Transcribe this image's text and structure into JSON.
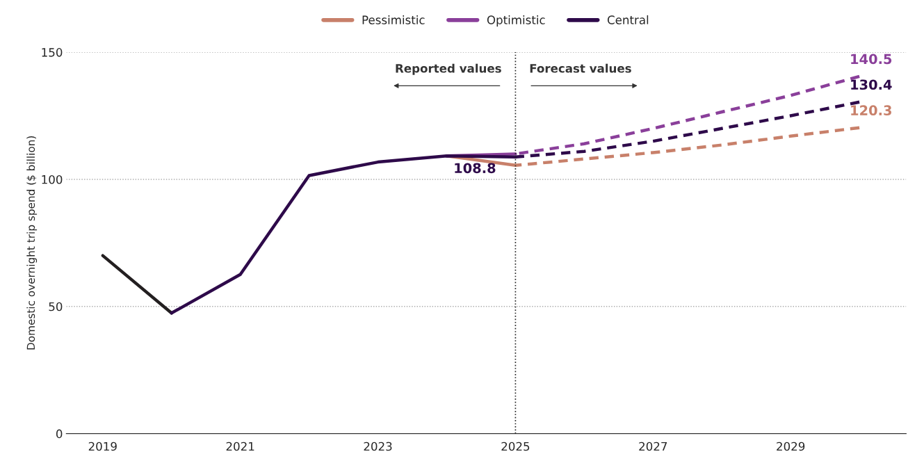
{
  "chart_data": {
    "type": "line",
    "ylabel": "Domestic overnight trip spend ($ billion)",
    "xlim": [
      2018.47,
      2030.68
    ],
    "ylim": [
      0,
      150
    ],
    "xticks": [
      2019,
      2021,
      2023,
      2025,
      2027,
      2029
    ],
    "yticks": [
      0,
      50,
      100,
      150
    ],
    "grid": "y",
    "legend": "top",
    "marker": "none",
    "series": [
      {
        "color": "#231f20",
        "x": [
          2019,
          2020
        ],
        "values": [
          70,
          47.4
        ],
        "line_style": "solid"
      },
      {
        "color": "#c8806a",
        "x": [
          2024,
          2025
        ],
        "values": [
          109.2,
          105.5
        ],
        "line_style": "solid"
      },
      {
        "color": "#8a3f9a",
        "x": [
          2024,
          2025
        ],
        "values": [
          109.2,
          110.0
        ],
        "line_style": "solid"
      },
      {
        "color": "#2e0a4a",
        "x": [
          2020,
          2021,
          2022,
          2023,
          2024,
          2025
        ],
        "values": [
          47.4,
          62.6,
          101.5,
          106.8,
          109.2,
          108.8
        ],
        "line_style": "solid",
        "value_labels": [
          null,
          null,
          null,
          null,
          null,
          "108.8"
        ]
      },
      {
        "name": "Pessimistic",
        "color": "#c8806a",
        "x": [
          2025,
          2026,
          2027,
          2028,
          2029,
          2030
        ],
        "values": [
          105.5,
          108,
          110.5,
          113.5,
          117,
          120.3
        ],
        "line_style": "dashed",
        "value_labels": [
          null,
          null,
          null,
          null,
          null,
          "120.3"
        ]
      },
      {
        "name": "Optimistic",
        "color": "#8a3f9a",
        "x": [
          2025,
          2026,
          2027,
          2028,
          2029,
          2030
        ],
        "values": [
          110.0,
          114,
          120,
          126.5,
          133,
          140.5
        ],
        "line_style": "dashed",
        "value_labels": [
          null,
          null,
          null,
          null,
          null,
          "140.5"
        ]
      },
      {
        "name": "Central",
        "color": "#2e0a4a",
        "x": [
          2025,
          2026,
          2027,
          2028,
          2029,
          2030
        ],
        "values": [
          108.8,
          111,
          115,
          120,
          125,
          130.4
        ],
        "line_style": "dashed",
        "value_labels": [
          null,
          null,
          null,
          null,
          null,
          "130.4"
        ]
      }
    ],
    "ref_lines": [
      {
        "axis": "x",
        "value": 2025,
        "color": "#222222",
        "line_style": "dotted"
      }
    ],
    "annotations": [
      "Reported values",
      "Forecast values"
    ]
  }
}
